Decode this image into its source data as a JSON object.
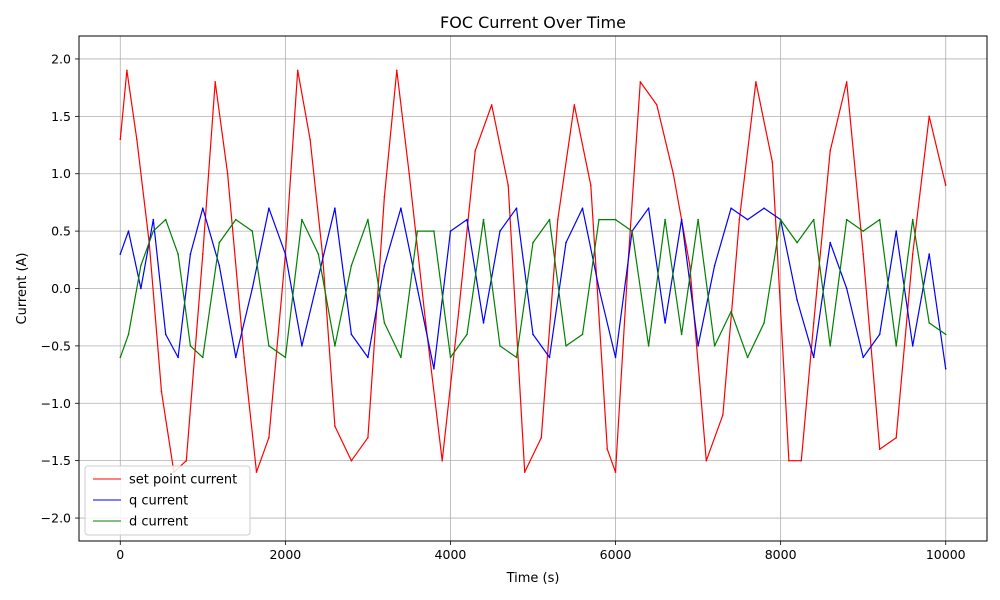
{
  "chart_data": {
    "type": "line",
    "title": "FOC Current Over Time",
    "xlabel": "Time (s)",
    "ylabel": "Current (A)",
    "xlim": [
      -500,
      10500
    ],
    "ylim": [
      -2.2,
      2.2
    ],
    "xticks": [
      0,
      2000,
      4000,
      6000,
      8000,
      10000
    ],
    "xtick_labels": [
      "0",
      "2000",
      "4000",
      "6000",
      "8000",
      "10000"
    ],
    "yticks": [
      -2.0,
      -1.5,
      -1.0,
      -0.5,
      0.0,
      0.5,
      1.0,
      1.5,
      2.0
    ],
    "ytick_labels": [
      "−2.0",
      "−1.5",
      "−1.0",
      "−0.5",
      "0.0",
      "0.5",
      "1.0",
      "1.5",
      "2.0"
    ],
    "grid": true,
    "legend_position": "bottom-left",
    "series": [
      {
        "name": "set point current",
        "color": "#ff0000",
        "x": [
          0,
          80,
          200,
          350,
          500,
          650,
          800,
          1000,
          1150,
          1300,
          1500,
          1650,
          1800,
          2000,
          2150,
          2300,
          2450,
          2600,
          2800,
          3000,
          3200,
          3350,
          3500,
          3700,
          3900,
          4100,
          4300,
          4500,
          4700,
          4900,
          5100,
          5300,
          5500,
          5700,
          5900,
          6000,
          6150,
          6300,
          6500,
          6700,
          6900,
          7100,
          7300,
          7500,
          7700,
          7900,
          8100,
          8250,
          8400,
          8600,
          8800,
          9000,
          9200,
          9400,
          9600,
          9800,
          10000
        ],
        "y": [
          1.3,
          1.9,
          1.3,
          0.4,
          -0.9,
          -1.6,
          -1.5,
          0.3,
          1.8,
          1.0,
          -0.6,
          -1.6,
          -1.3,
          0.3,
          1.9,
          1.3,
          0.3,
          -1.2,
          -1.5,
          -1.3,
          0.8,
          1.9,
          1.0,
          -0.3,
          -1.5,
          -0.2,
          1.2,
          1.6,
          0.9,
          -1.6,
          -1.3,
          0.6,
          1.6,
          0.9,
          -1.4,
          -1.6,
          0.2,
          1.8,
          1.6,
          1.0,
          0.2,
          -1.5,
          -1.1,
          0.6,
          1.8,
          1.1,
          -1.5,
          -1.5,
          -0.3,
          1.2,
          1.8,
          0.3,
          -1.4,
          -1.3,
          0.3,
          1.5,
          0.9
        ]
      },
      {
        "name": "q current",
        "color": "#0000ff",
        "x": [
          0,
          100,
          250,
          400,
          550,
          700,
          850,
          1000,
          1200,
          1400,
          1600,
          1800,
          2000,
          2200,
          2400,
          2600,
          2800,
          3000,
          3200,
          3400,
          3600,
          3800,
          4000,
          4200,
          4400,
          4600,
          4800,
          5000,
          5200,
          5400,
          5600,
          5800,
          6000,
          6200,
          6400,
          6600,
          6800,
          7000,
          7200,
          7400,
          7600,
          7800,
          8000,
          8200,
          8400,
          8600,
          8800,
          9000,
          9200,
          9400,
          9600,
          9800,
          10000
        ],
        "y": [
          0.3,
          0.5,
          0.0,
          0.6,
          -0.4,
          -0.6,
          0.3,
          0.7,
          0.2,
          -0.6,
          0.0,
          0.7,
          0.3,
          -0.5,
          0.1,
          0.7,
          -0.4,
          -0.6,
          0.2,
          0.7,
          0.0,
          -0.7,
          0.5,
          0.6,
          -0.3,
          0.5,
          0.7,
          -0.4,
          -0.6,
          0.4,
          0.7,
          0.0,
          -0.6,
          0.5,
          0.7,
          -0.3,
          0.6,
          -0.5,
          0.2,
          0.7,
          0.6,
          0.7,
          0.6,
          -0.1,
          -0.6,
          0.4,
          0.0,
          -0.6,
          -0.4,
          0.5,
          -0.5,
          0.3,
          -0.7
        ]
      },
      {
        "name": "d current",
        "color": "#008000",
        "x": [
          0,
          100,
          250,
          400,
          550,
          700,
          850,
          1000,
          1200,
          1400,
          1600,
          1800,
          2000,
          2200,
          2400,
          2600,
          2800,
          3000,
          3200,
          3400,
          3600,
          3800,
          4000,
          4200,
          4400,
          4600,
          4800,
          5000,
          5200,
          5400,
          5600,
          5800,
          6000,
          6200,
          6400,
          6600,
          6800,
          7000,
          7200,
          7400,
          7600,
          7800,
          8000,
          8200,
          8400,
          8600,
          8800,
          9000,
          9200,
          9400,
          9600,
          9800,
          10000
        ],
        "y": [
          -0.6,
          -0.4,
          0.2,
          0.5,
          0.6,
          0.3,
          -0.5,
          -0.6,
          0.4,
          0.6,
          0.5,
          -0.5,
          -0.6,
          0.6,
          0.3,
          -0.5,
          0.2,
          0.6,
          -0.3,
          -0.6,
          0.5,
          0.5,
          -0.6,
          -0.4,
          0.6,
          -0.5,
          -0.6,
          0.4,
          0.6,
          -0.5,
          -0.4,
          0.6,
          0.6,
          0.5,
          -0.5,
          0.6,
          -0.4,
          0.6,
          -0.5,
          -0.2,
          -0.6,
          -0.3,
          0.6,
          0.4,
          0.6,
          -0.5,
          0.6,
          0.5,
          0.6,
          -0.5,
          0.6,
          -0.3,
          -0.4
        ]
      }
    ]
  }
}
